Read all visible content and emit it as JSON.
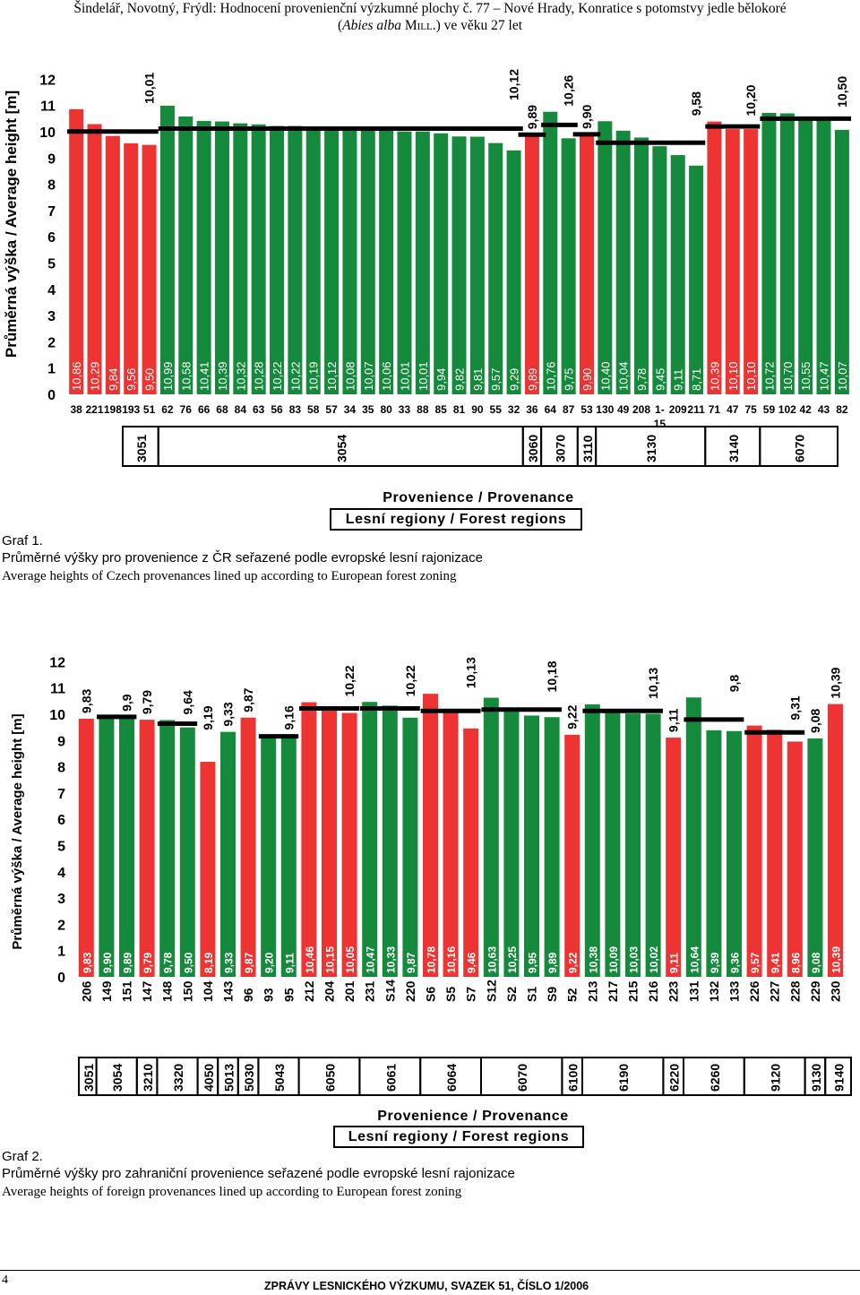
{
  "header": {
    "line1": "Šindelář, Novotný, Frýdl: Hodnocení provenienční výzkumné plochy č. 77 – Nové Hrady, Konratice s potomstvy jedle bělokoré",
    "line2": "(Abies alba MILL.) ve věku 27 let"
  },
  "colors": {
    "red": "#ee3333",
    "green": "#158a3c",
    "black": "#000000"
  },
  "chart_data": [
    {
      "type": "bar",
      "ylabel": "Průměrná výška / Average height [m]",
      "ylim": [
        0,
        12
      ],
      "yticks": [
        0,
        1,
        2,
        3,
        4,
        5,
        6,
        7,
        8,
        9,
        10,
        11,
        12
      ],
      "categories": [
        "38",
        "221",
        "198",
        "193",
        "51",
        "62",
        "76",
        "66",
        "68",
        "84",
        "63",
        "56",
        "83",
        "58",
        "57",
        "34",
        "35",
        "80",
        "33",
        "88",
        "85",
        "81",
        "90",
        "55",
        "32",
        "36",
        "64",
        "87",
        "53",
        "130",
        "49",
        "208",
        "1-15",
        "209",
        "211",
        "71",
        "47",
        "75",
        "59",
        "102",
        "42",
        "43",
        "82"
      ],
      "category_display": [
        "38",
        "221198193",
        "51",
        "62",
        "76",
        "66",
        "68",
        "84",
        "63",
        "56",
        "83",
        "58",
        "57",
        "34",
        "35",
        "80",
        "33",
        "88",
        "85",
        "81",
        "90",
        "55",
        "32",
        "36",
        "64",
        "87",
        "53",
        "130",
        "49",
        "208",
        "1-\n15",
        "209211",
        "71",
        "47",
        "75",
        "59",
        "102",
        "42",
        "43",
        "82"
      ],
      "values": [
        10.86,
        10.29,
        9.84,
        9.56,
        9.5,
        10.99,
        10.58,
        10.41,
        10.39,
        10.32,
        10.28,
        10.22,
        10.22,
        10.19,
        10.12,
        10.08,
        10.07,
        10.06,
        10.01,
        10.01,
        9.94,
        9.82,
        9.81,
        9.57,
        9.29,
        9.89,
        10.76,
        9.75,
        9.9,
        10.4,
        10.04,
        9.78,
        9.45,
        9.11,
        8.71,
        10.39,
        10.1,
        10.1,
        10.72,
        10.7,
        10.55,
        10.47,
        10.07
      ],
      "value_labels": [
        "10,86",
        "10,29",
        "9,84",
        "9,56",
        "9,50",
        "10,99",
        "10,58",
        "10,41",
        "10,39",
        "10,32",
        "10,28",
        "10,22",
        "10,22",
        "10,19",
        "10,12",
        "10,08",
        "10,07",
        "10,06",
        "10,01",
        "10,01",
        "9,94",
        "9,82",
        "9,81",
        "9,57",
        "9,29",
        "9,89",
        "10,76",
        "9,75",
        "9,90",
        "10,40",
        "10,04",
        "9,78",
        "9,45",
        "9,11",
        "8,71",
        "10,39",
        "10,10",
        "10,10",
        "10,72",
        "10,70",
        "10,55",
        "10,47",
        "10,07"
      ],
      "bar_colors": [
        "red",
        "red",
        "red",
        "red",
        "red",
        "green",
        "green",
        "green",
        "green",
        "green",
        "green",
        "green",
        "green",
        "green",
        "green",
        "green",
        "green",
        "green",
        "green",
        "green",
        "green",
        "green",
        "green",
        "green",
        "green",
        "red",
        "green",
        "green",
        "red",
        "green",
        "green",
        "green",
        "green",
        "green",
        "green",
        "red",
        "red",
        "red",
        "green",
        "green",
        "green",
        "green",
        "green"
      ],
      "regions": [
        {
          "name": "3051",
          "start": 0,
          "end": 4,
          "mean": 10.01,
          "mean_label": "10,01"
        },
        {
          "name": "3054",
          "start": 5,
          "end": 24,
          "mean": 10.12,
          "mean_label": "10,12"
        },
        {
          "name": "3060",
          "start": 25,
          "end": 25,
          "mean": 9.89,
          "mean_label": "9,89"
        },
        {
          "name": "3070",
          "start": 26,
          "end": 27,
          "mean": 10.26,
          "mean_label": "10,26"
        },
        {
          "name": "3110",
          "start": 28,
          "end": 28,
          "mean": 9.9,
          "mean_label": "9,90"
        },
        {
          "name": "3130",
          "start": 29,
          "end": 34,
          "mean": 9.58,
          "mean_label": "9,58"
        },
        {
          "name": "3140",
          "start": 35,
          "end": 37,
          "mean": 10.2,
          "mean_label": "10,20"
        },
        {
          "name": "6070",
          "start": 38,
          "end": 42,
          "mean": 10.5,
          "mean_label": "10,50"
        }
      ]
    },
    {
      "type": "bar",
      "ylabel": "Průměrná výška / Average height [m]",
      "ylim": [
        0,
        12
      ],
      "yticks": [
        0,
        1,
        2,
        3,
        4,
        5,
        6,
        7,
        8,
        9,
        10,
        11,
        12
      ],
      "categories": [
        "206",
        "149",
        "151",
        "147",
        "148",
        "150",
        "104",
        "143",
        "96",
        "93",
        "95",
        "212",
        "204",
        "201",
        "231",
        "S14",
        "220",
        "S6",
        "S5",
        "S7",
        "S12",
        "S2",
        "S1",
        "S9",
        "52",
        "213",
        "217",
        "215",
        "216",
        "223",
        "131",
        "132",
        "133",
        "226",
        "227",
        "228",
        "229",
        "230"
      ],
      "values": [
        9.83,
        9.9,
        9.89,
        9.79,
        9.78,
        9.5,
        8.19,
        9.33,
        9.87,
        9.2,
        9.11,
        10.46,
        10.15,
        10.05,
        10.47,
        10.33,
        9.87,
        10.78,
        10.16,
        9.46,
        10.63,
        10.25,
        9.95,
        9.89,
        9.22,
        10.38,
        10.09,
        10.03,
        10.02,
        9.11,
        10.64,
        9.39,
        9.36,
        9.57,
        9.41,
        8.96,
        9.08,
        10.39
      ],
      "value_labels": [
        "9,83",
        "9,90",
        "9,89",
        "9,79",
        "9,78",
        "9,50",
        "8,19",
        "9,33",
        "9,87",
        "9,20",
        "9,11",
        "10,46",
        "10,15",
        "10,05",
        "10,47",
        "10,33",
        "9,87",
        "10,78",
        "10,16",
        "9,46",
        "10,63",
        "10,25",
        "9,95",
        "9,89",
        "9,22",
        "10,38",
        "10,09",
        "10,03",
        "10,02",
        "9,11",
        "10,64",
        "9,39",
        "9,36",
        "9,57",
        "9,41",
        "8,96",
        "9,08",
        "10,39"
      ],
      "bar_colors": [
        "red",
        "green",
        "green",
        "red",
        "green",
        "green",
        "red",
        "green",
        "red",
        "green",
        "green",
        "red",
        "red",
        "red",
        "green",
        "green",
        "green",
        "red",
        "red",
        "red",
        "green",
        "green",
        "green",
        "green",
        "red",
        "green",
        "green",
        "green",
        "green",
        "red",
        "green",
        "green",
        "green",
        "red",
        "red",
        "red",
        "green",
        "red"
      ],
      "regions": [
        {
          "name": "3051",
          "start": 0,
          "end": 0,
          "mean": 9.83,
          "mean_label": "9,83",
          "line": false
        },
        {
          "name": "3054",
          "start": 1,
          "end": 2,
          "mean": 9.9,
          "mean_label": "9,9",
          "line": true
        },
        {
          "name": "3210",
          "start": 3,
          "end": 3,
          "mean": 9.79,
          "mean_label": "9,79",
          "line": false
        },
        {
          "name": "3320",
          "start": 4,
          "end": 5,
          "mean": 9.64,
          "mean_label": "9,64",
          "line": true
        },
        {
          "name": "4050",
          "start": 6,
          "end": 6,
          "mean": 9.19,
          "mean_label": "9,19",
          "line": false
        },
        {
          "name": "5013",
          "start": 7,
          "end": 7,
          "mean": 9.33,
          "mean_label": "9,33",
          "line": false
        },
        {
          "name": "5030",
          "start": 8,
          "end": 8,
          "mean": 9.87,
          "mean_label": "9,87",
          "line": false
        },
        {
          "name": "5043",
          "start": 9,
          "end": 10,
          "mean": 9.16,
          "mean_label": "9,16",
          "line": true
        },
        {
          "name": "6050",
          "start": 11,
          "end": 13,
          "mean": 10.22,
          "mean_label": "10,22",
          "line": true
        },
        {
          "name": "6061",
          "start": 14,
          "end": 16,
          "mean": 10.22,
          "mean_label": "10,22",
          "line": true
        },
        {
          "name": "6064",
          "start": 17,
          "end": 19,
          "mean": 10.13,
          "mean_label": "10,13",
          "line": true
        },
        {
          "name": "6070",
          "start": 20,
          "end": 23,
          "mean": 10.18,
          "mean_label": "10,18",
          "line": true
        },
        {
          "name": "6100",
          "start": 24,
          "end": 24,
          "mean": 9.22,
          "mean_label": "9,22",
          "line": false
        },
        {
          "name": "6190",
          "start": 25,
          "end": 28,
          "mean": 10.13,
          "mean_label": "10,13",
          "line": true
        },
        {
          "name": "6220",
          "start": 29,
          "end": 29,
          "mean": 9.11,
          "mean_label": "9,11",
          "line": false
        },
        {
          "name": "6260",
          "start": 30,
          "end": 32,
          "mean": 9.8,
          "mean_label": "9,8",
          "line": true
        },
        {
          "name": "9120",
          "start": 33,
          "end": 35,
          "mean": 9.31,
          "mean_label": "9,31",
          "line": true
        },
        {
          "name": "9130",
          "start": 36,
          "end": 36,
          "mean": 9.08,
          "mean_label": "9,08",
          "line": false
        },
        {
          "name": "9140",
          "start": 37,
          "end": 37,
          "mean": 10.39,
          "mean_label": "10,39",
          "line": false
        }
      ]
    }
  ],
  "graf1": {
    "prov_title": "Provenience / Provenance",
    "regions_title": "Lesní regiony / Forest regions",
    "label": "Graf 1.",
    "caption_cz": "Průměrné výšky pro provenience z ČR seřazené podle evropské lesní rajonizace",
    "caption_en": "Average heights of Czech provenances lined up according to European forest zoning"
  },
  "graf2": {
    "prov_title": "Provenience / Provenance",
    "regions_title": "Lesní regiony / Forest regions",
    "label": "Graf 2.",
    "caption_cz": "Průměrné výšky pro zahraniční provenience seřazené podle evropské lesní rajonizace",
    "caption_en": "Average heights of foreign provenances lined up according to European forest zoning"
  },
  "footer": {
    "page": "4",
    "journal": "ZPRÁVY LESNICKÉHO VÝZKUMU, SVAZEK 51, ČÍSLO 1/2006"
  }
}
